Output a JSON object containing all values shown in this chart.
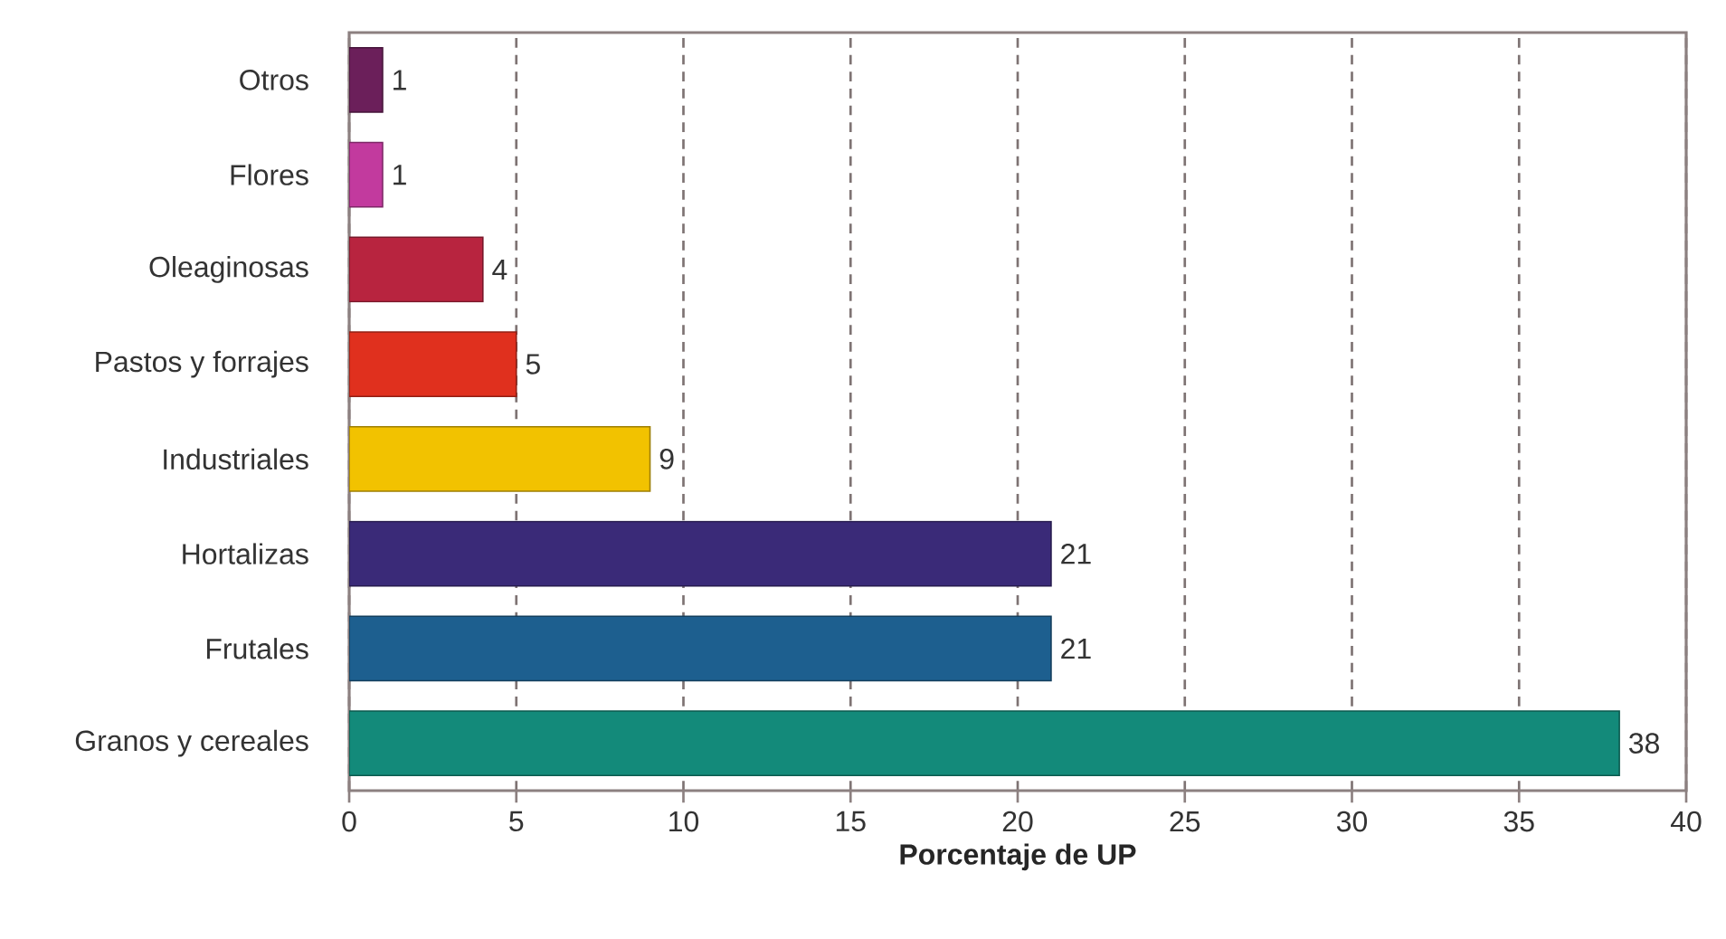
{
  "chart_data": {
    "type": "bar",
    "orientation": "horizontal",
    "xlabel": "Porcentaje de UP",
    "categories": [
      "Otros",
      "Flores",
      "Oleaginosas",
      "Pastos y forrajes",
      "Industriales",
      "Hortalizas",
      "Frutales",
      "Granos y cereales"
    ],
    "values": [
      1,
      1,
      4,
      5,
      9,
      21,
      21,
      38
    ],
    "colors": [
      "#6b1f5a",
      "#c23a9e",
      "#b8243f",
      "#e0301e",
      "#f2c200",
      "#3a2a78",
      "#1d5f8f",
      "#138a7a"
    ],
    "xlim": [
      0,
      40
    ],
    "xticks": [
      0,
      5,
      10,
      15,
      20,
      25,
      30,
      35,
      40
    ],
    "grid": "x",
    "data_labels": true
  }
}
